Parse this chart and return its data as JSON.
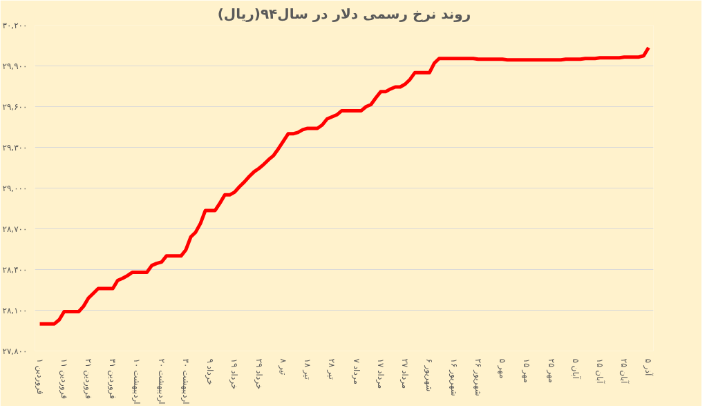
{
  "chart_data": {
    "type": "line",
    "title": "روند نرخ رسمی دلار در سال۹۴(ریال)",
    "categories": [
      "۱ فروردین",
      null,
      null,
      null,
      null,
      "۱۱ فروردین",
      null,
      null,
      null,
      null,
      "۲۱ فروردین",
      null,
      null,
      null,
      null,
      "۳۱ فروردین",
      null,
      null,
      null,
      null,
      "۱۰ اردیبهشت",
      null,
      null,
      null,
      null,
      "۲۰ اردیبهشت",
      null,
      null,
      null,
      null,
      "۳۰ اردیبهشت",
      null,
      null,
      null,
      null,
      "۹ خرداد",
      null,
      null,
      null,
      null,
      "۱۹ خرداد",
      null,
      null,
      null,
      null,
      "۲۹ خرداد",
      null,
      null,
      null,
      null,
      "۸ تیر",
      null,
      null,
      null,
      null,
      "۱۸ تیر",
      null,
      null,
      null,
      null,
      "۲۸ تیر",
      null,
      null,
      null,
      null,
      "۷ مرداد",
      null,
      null,
      null,
      null,
      "۱۷ مرداد",
      null,
      null,
      null,
      null,
      "۲۷ مرداد",
      null,
      null,
      null,
      null,
      "۶ شهریور",
      null,
      null,
      null,
      null,
      "۱۶ شهریور",
      null,
      null,
      null,
      null,
      "۲۶ شهریور",
      null,
      null,
      null,
      null,
      "۵ مهر",
      null,
      null,
      null,
      null,
      "۱۵ مهر",
      null,
      null,
      null,
      null,
      "۲۵ مهر",
      null,
      null,
      null,
      null,
      "۵ آبان",
      null,
      null,
      null,
      null,
      "۱۵ آبان",
      null,
      null,
      null,
      null,
      "۲۵ آبان",
      null,
      null,
      null,
      null,
      "۵ آذر"
    ],
    "series": [
      {
        "color": "#ff0000",
        "values": [
          28000,
          28000,
          28000,
          28000,
          28030,
          28090,
          28090,
          28090,
          28090,
          28130,
          28190,
          28225,
          28260,
          28260,
          28260,
          28260,
          28320,
          28335,
          28355,
          28380,
          28380,
          28380,
          28380,
          28430,
          28445,
          28455,
          28500,
          28500,
          28500,
          28500,
          28545,
          28640,
          28675,
          28740,
          28835,
          28835,
          28835,
          28890,
          28950,
          28950,
          28970,
          29010,
          29045,
          29085,
          29120,
          29145,
          29175,
          29210,
          29240,
          29290,
          29345,
          29400,
          29400,
          29410,
          29430,
          29440,
          29440,
          29440,
          29465,
          29510,
          29525,
          29540,
          29570,
          29570,
          29570,
          29570,
          29570,
          29600,
          29615,
          29665,
          29710,
          29710,
          29730,
          29745,
          29745,
          29765,
          29800,
          29850,
          29850,
          29850,
          29850,
          29920,
          29955,
          29955,
          29955,
          29955,
          29955,
          29955,
          29955,
          29955,
          29950,
          29950,
          29950,
          29950,
          29950,
          29950,
          29945,
          29945,
          29945,
          29945,
          29945,
          29945,
          29945,
          29945,
          29945,
          29945,
          29945,
          29945,
          29950,
          29950,
          29950,
          29950,
          29955,
          29955,
          29955,
          29960,
          29960,
          29960,
          29960,
          29960,
          29965,
          29965,
          29965,
          29965,
          29975,
          30035
        ]
      }
    ],
    "ylim": [
      27800,
      30200
    ],
    "yticks": [
      {
        "value": 27800,
        "label": "۲۷,۸۰۰"
      },
      {
        "value": 28100,
        "label": "۲۸,۱۰۰"
      },
      {
        "value": 28400,
        "label": "۲۸,۴۰۰"
      },
      {
        "value": 28700,
        "label": "۲۸,۷۰۰"
      },
      {
        "value": 29000,
        "label": "۲۹,۰۰۰"
      },
      {
        "value": 29300,
        "label": "۲۹,۳۰۰"
      },
      {
        "value": 29600,
        "label": "۲۹,۶۰۰"
      },
      {
        "value": 29900,
        "label": "۲۹,۹۰۰"
      },
      {
        "value": 30200,
        "label": "۳۰,۲۰۰"
      }
    ],
    "grid": "y",
    "line_style": "solid"
  }
}
